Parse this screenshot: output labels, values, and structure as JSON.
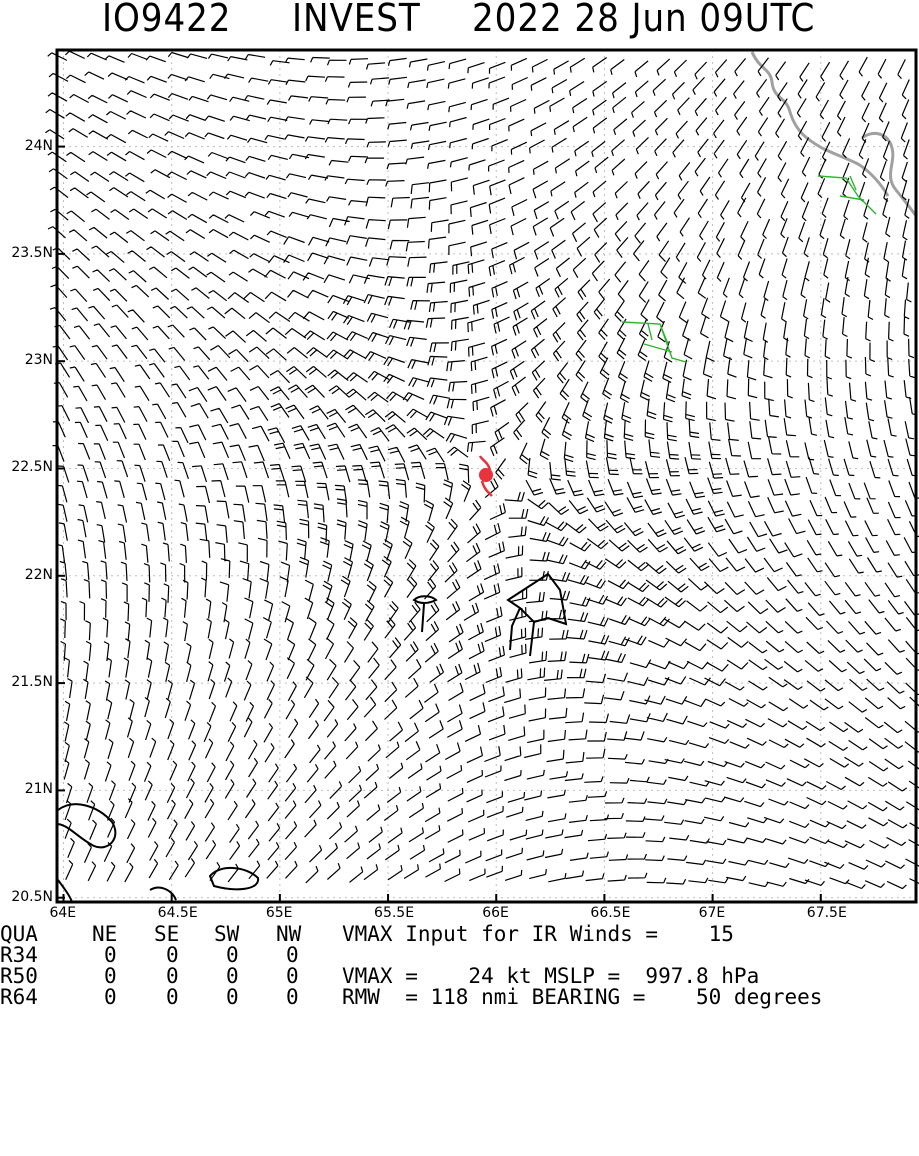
{
  "header": {
    "storm_id": "IO9422",
    "storm_name": "INVEST",
    "datetime": "2022 28 Jun 09UTC"
  },
  "map": {
    "lon_range": [
      64,
      68
    ],
    "lat_range": [
      20.5,
      24.5
    ],
    "x_ticks": [
      "64E",
      "64.5E",
      "65E",
      "65.5E",
      "66E",
      "66.5E",
      "67E",
      "67.5E"
    ],
    "y_ticks": [
      "24N",
      "23.5N",
      "23N",
      "22.5N",
      "22N",
      "21.5N",
      "21N",
      "20.5N"
    ],
    "center": {
      "lon": 65.99,
      "lat": 22.47
    },
    "gridlines": "dotted",
    "colors": {
      "barbs": "#000000",
      "center_symbol": "#e8323c",
      "highlight_barbs": "#2db52d",
      "coastline": "#a0a0a0",
      "frame": "#000000"
    },
    "center_icon": "tropical-cyclone-symbol"
  },
  "info": {
    "header_row": {
      "quadrant": "QUA",
      "ne": "NE",
      "se": "SE",
      "sw": "SW",
      "nw": "NW",
      "note": "VMAX Input for IR Winds =    15"
    },
    "rows": [
      {
        "label": "R34",
        "ne": "0",
        "se": "0",
        "sw": "0",
        "nw": "0",
        "note": ""
      },
      {
        "label": "R50",
        "ne": "0",
        "se": "0",
        "sw": "0",
        "nw": "0",
        "note": "VMAX =    24 kt MSLP =  997.8 hPa"
      },
      {
        "label": "R64",
        "ne": "0",
        "se": "0",
        "sw": "0",
        "nw": "0",
        "note": "RMW  = 118 nmi BEARING =    50 degrees"
      }
    ]
  }
}
